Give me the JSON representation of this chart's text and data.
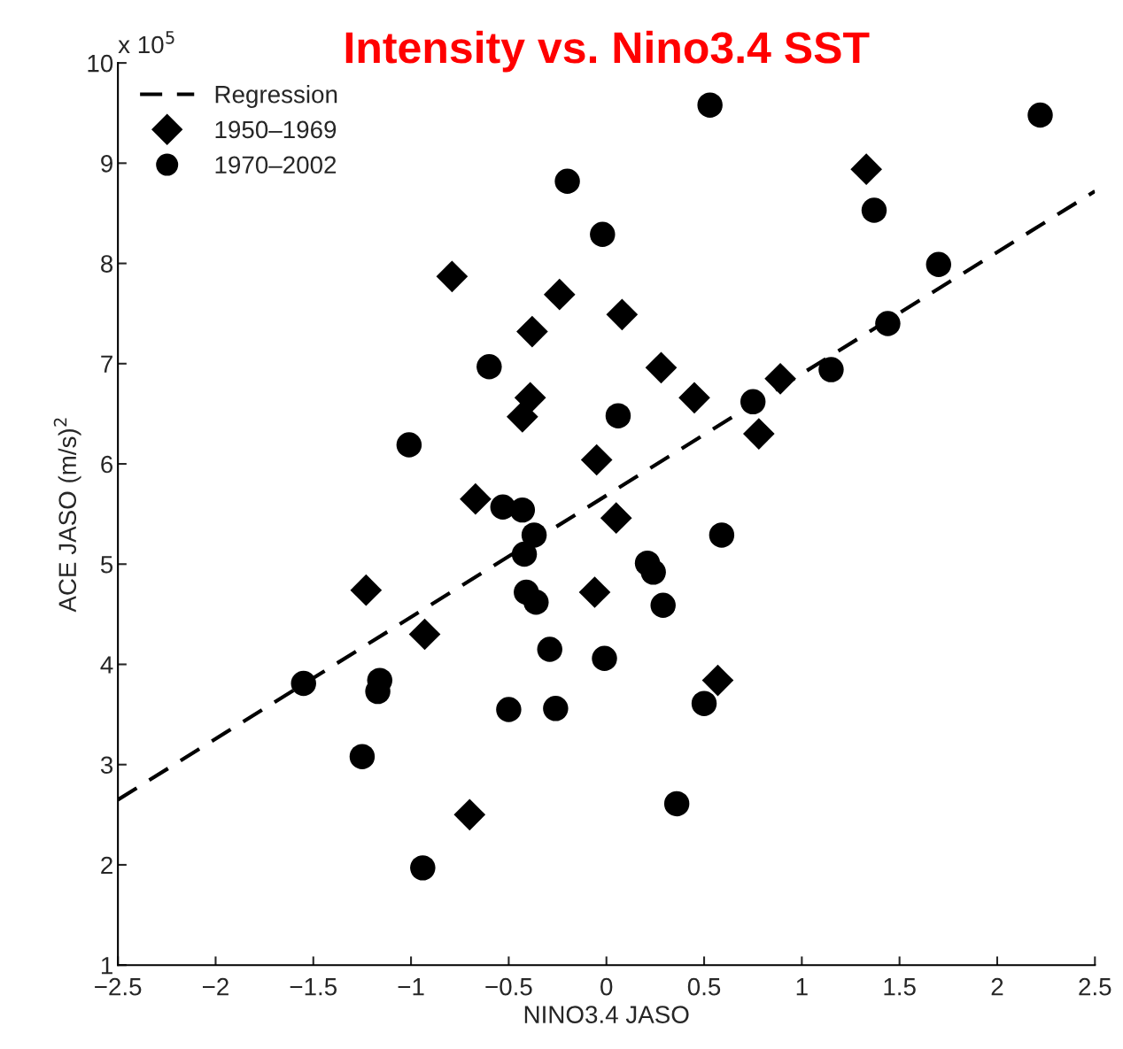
{
  "chart_data": {
    "type": "scatter",
    "title": "Intensity vs. Nino3.4 SST",
    "xlabel": "NINO3.4 JASO",
    "ylabel": "ACE JASO (m/s)$^{2}$",
    "annotations": [
      "x 10$^{5}$"
    ],
    "xlim": [
      -2.5,
      2.5
    ],
    "ylim": [
      1,
      10
    ],
    "xticks": [
      {
        "value": -2.5,
        "label": "−2.5"
      },
      {
        "value": -2,
        "label": "−2"
      },
      {
        "value": -1.5,
        "label": "−1.5"
      },
      {
        "value": -1,
        "label": "−1"
      },
      {
        "value": -0.5,
        "label": "−0.5"
      },
      0,
      0.5,
      1,
      1.5,
      2,
      2.5
    ],
    "yticks": [
      1,
      2,
      3,
      4,
      5,
      6,
      7,
      8,
      9,
      10
    ],
    "grid": false,
    "legend": "top left",
    "series": [
      {
        "name": "Regression",
        "type": "line",
        "line_style": "dashed",
        "marker": "none",
        "color": "#000000",
        "x": [
          -2.5,
          2.5
        ],
        "values": [
          2.65,
          8.72
        ]
      },
      {
        "name": "1950–1969",
        "type": "scatter",
        "marker": "diamond",
        "color": "#000000",
        "x": [
          1.33,
          -0.79,
          -0.24,
          -0.38,
          0.08,
          0.28,
          -0.39,
          -0.43,
          0.45,
          0.89,
          0.78,
          -0.05,
          -0.67,
          0.05,
          -1.23,
          -0.06,
          -0.93,
          0.57,
          -0.7
        ],
        "values": [
          8.94,
          7.87,
          7.69,
          7.32,
          7.49,
          6.96,
          6.66,
          6.47,
          6.66,
          6.85,
          6.3,
          6.04,
          5.65,
          5.46,
          4.74,
          4.72,
          4.3,
          3.84,
          2.5
        ]
      },
      {
        "name": "1970–2002",
        "type": "scatter",
        "marker": "circle",
        "color": "#000000",
        "x": [
          0.53,
          2.22,
          1.37,
          -0.2,
          -0.02,
          1.7,
          1.44,
          -0.6,
          1.15,
          0.75,
          0.06,
          -1.01,
          -0.53,
          -0.43,
          -0.37,
          -0.42,
          0.59,
          0.21,
          0.24,
          -0.41,
          -0.36,
          0.29,
          -0.29,
          -0.01,
          -1.55,
          -1.16,
          -1.17,
          -0.5,
          -0.26,
          0.5,
          -1.25,
          0.36,
          -0.94
        ],
        "values": [
          9.58,
          9.48,
          8.53,
          8.82,
          8.29,
          7.99,
          7.4,
          6.97,
          6.94,
          6.62,
          6.48,
          6.19,
          5.57,
          5.54,
          5.29,
          5.1,
          5.29,
          5.01,
          4.92,
          4.72,
          4.62,
          4.59,
          4.15,
          4.06,
          3.81,
          3.84,
          3.73,
          3.55,
          3.56,
          3.61,
          3.08,
          2.61,
          1.97
        ]
      }
    ]
  }
}
